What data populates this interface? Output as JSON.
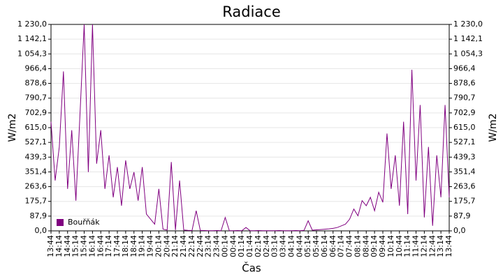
{
  "chart_data": {
    "type": "line",
    "title": "Radiace",
    "xlabel": "Čas",
    "ylabel": "W/m2",
    "y2label": "W/m2",
    "categories": [
      "13:44",
      null,
      "14:14",
      null,
      "14:44",
      null,
      "15:14",
      null,
      "15:44",
      null,
      "16:14",
      null,
      "16:44",
      null,
      "17:14",
      null,
      "17:44",
      null,
      "18:14",
      null,
      "18:44",
      null,
      "19:14",
      null,
      "19:44",
      null,
      "20:14",
      null,
      "20:44",
      null,
      "21:14",
      null,
      "21:44",
      null,
      "22:14",
      null,
      "22:44",
      null,
      "23:14",
      null,
      "23:44",
      null,
      "00:14",
      null,
      "00:44",
      null,
      "01:14",
      null,
      "01:44",
      null,
      "02:14",
      null,
      "02:44",
      null,
      "03:14",
      null,
      "03:44",
      null,
      "04:14",
      null,
      "04:44",
      null,
      "05:14",
      null,
      "05:44",
      null,
      "06:14",
      null,
      "06:44",
      null,
      "07:14",
      null,
      "07:44",
      null,
      "08:14",
      null,
      "08:44",
      null,
      "09:14",
      null,
      "09:44",
      null,
      "10:14",
      null,
      "10:44",
      null,
      "11:14",
      null,
      "11:44",
      null,
      "12:14",
      null,
      "12:44",
      null,
      "13:14",
      null,
      "13:44"
    ],
    "series": [
      {
        "name": "Bouřňák",
        "color": "#800080",
        "values": [
          650,
          300,
          500,
          950,
          250,
          600,
          180,
          700,
          1230,
          350,
          1230,
          400,
          600,
          250,
          450,
          200,
          380,
          150,
          420,
          250,
          350,
          180,
          380,
          100,
          70,
          40,
          250,
          10,
          5,
          410,
          5,
          300,
          5,
          3,
          2,
          120,
          2,
          2,
          1,
          1,
          2,
          1,
          80,
          1,
          1,
          2,
          1,
          20,
          1,
          1,
          2,
          1,
          1,
          1,
          1,
          2,
          1,
          1,
          1,
          2,
          1,
          3,
          60,
          4,
          6,
          8,
          10,
          12,
          15,
          20,
          30,
          40,
          70,
          130,
          90,
          180,
          150,
          200,
          120,
          230,
          170,
          580,
          250,
          450,
          150,
          650,
          100,
          960,
          300,
          750,
          80,
          500,
          30,
          450,
          200,
          750,
          200
        ]
      }
    ],
    "ylim": [
      0,
      1230
    ],
    "y2lim": [
      0,
      1230
    ],
    "yticks": [
      {
        "value": 0,
        "label": "0,0"
      },
      {
        "value": 87.9,
        "label": "87,9"
      },
      {
        "value": 175.7,
        "label": "175,7"
      },
      {
        "value": 263.6,
        "label": "263,6"
      },
      {
        "value": 351.4,
        "label": "351,4"
      },
      {
        "value": 439.3,
        "label": "439,3"
      },
      {
        "value": 527.1,
        "label": "527,1"
      },
      {
        "value": 615,
        "label": "615,0"
      },
      {
        "value": 702.9,
        "label": "702,9"
      },
      {
        "value": 790.7,
        "label": "790,7"
      },
      {
        "value": 878.6,
        "label": "878,6"
      },
      {
        "value": 966.4,
        "label": "966,4"
      },
      {
        "value": 1054.3,
        "label": "1 054,3"
      },
      {
        "value": 1142.1,
        "label": "1 142,1"
      },
      {
        "value": 1230,
        "label": "1 230,0"
      }
    ],
    "y2ticks": [
      {
        "value": 0,
        "label": "0,0"
      },
      {
        "value": 87.9,
        "label": "87,9"
      },
      {
        "value": 175.7,
        "label": "175,7"
      },
      {
        "value": 263.6,
        "label": "263,6"
      },
      {
        "value": 351.4,
        "label": "351,4"
      },
      {
        "value": 439.3,
        "label": "439,3"
      },
      {
        "value": 527.1,
        "label": "527,1"
      },
      {
        "value": 615,
        "label": "615,0"
      },
      {
        "value": 702.9,
        "label": "702,9"
      },
      {
        "value": 790.7,
        "label": "790,7"
      },
      {
        "value": 878.6,
        "label": "878,6"
      },
      {
        "value": 966.4,
        "label": "966,4"
      },
      {
        "value": 1054.3,
        "label": "1 054,3"
      },
      {
        "value": 1142.1,
        "label": "1 142,1"
      },
      {
        "value": 1230,
        "label": "1 230,0"
      }
    ],
    "grid": true,
    "legend": "lower left"
  }
}
